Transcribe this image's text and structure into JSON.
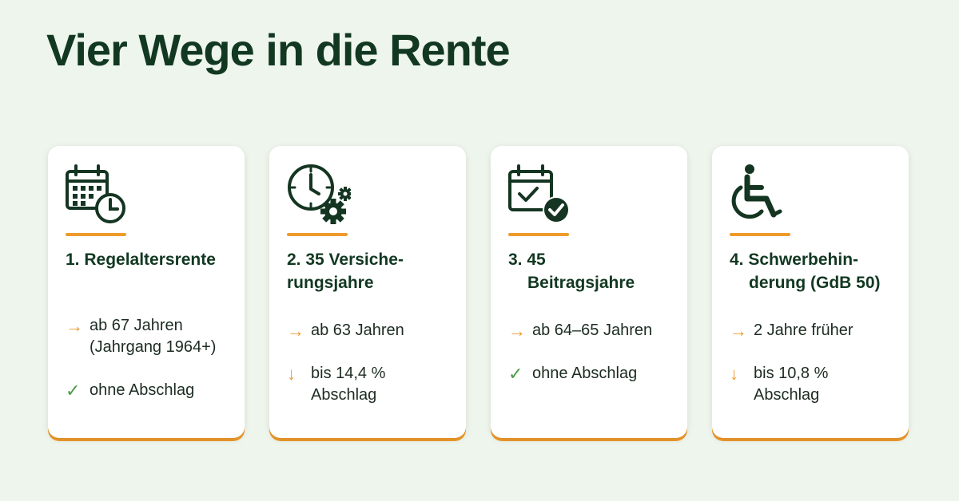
{
  "title": "Vier Wege in die Rente",
  "colors": {
    "accent": "#ef9a2c",
    "check": "#4c9a46",
    "text": "#123821",
    "background": "#eef5ec"
  },
  "cards": [
    {
      "icon": "calendar-clock-icon",
      "heading": [
        "1. Regelaltersrente"
      ],
      "items": [
        {
          "symbol": "arrow-right-icon",
          "lines": [
            "ab 67 Jahren",
            "(Jahrgang 1964+)"
          ]
        },
        {
          "symbol": "check-icon",
          "lines": [
            "ohne Abschlag"
          ]
        }
      ]
    },
    {
      "icon": "clock-gears-icon",
      "heading": [
        "2. 35 Versiche-",
        "rungsjahre"
      ],
      "items": [
        {
          "symbol": "arrow-right-icon",
          "lines": [
            "ab 63 Jahren"
          ]
        },
        {
          "symbol": "arrow-down-icon",
          "lines": [
            "bis 14,4 %",
            "Abschlag"
          ]
        }
      ]
    },
    {
      "icon": "calendar-check-icon",
      "heading": [
        "3. 45",
        "Beitragsjahre"
      ],
      "items": [
        {
          "symbol": "arrow-right-icon",
          "lines": [
            "ab 64–65 Jahren"
          ]
        },
        {
          "symbol": "check-icon",
          "lines": [
            "ohne Abschlag"
          ]
        }
      ]
    },
    {
      "icon": "wheelchair-icon",
      "heading": [
        "4. Schwerbehin-",
        "derung (GdB 50)"
      ],
      "items": [
        {
          "symbol": "arrow-right-icon",
          "lines": [
            "2 Jahre früher"
          ]
        },
        {
          "symbol": "arrow-down-icon",
          "lines": [
            "bis 10,8 %",
            "Abschlag"
          ]
        }
      ]
    }
  ]
}
